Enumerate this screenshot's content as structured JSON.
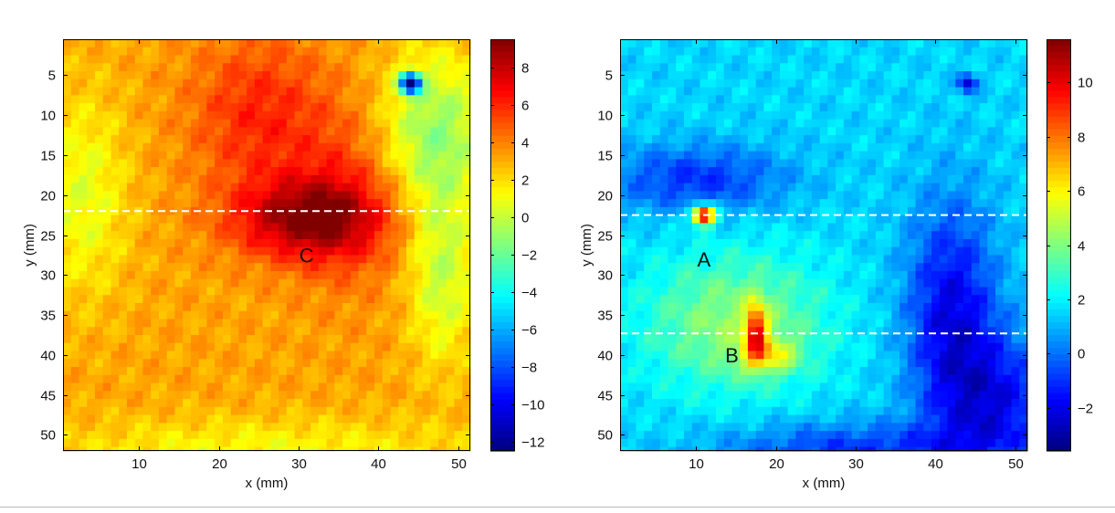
{
  "chart_data": [
    {
      "type": "heatmap",
      "id": "left",
      "xlabel": "x (mm)",
      "ylabel": "y (mm)",
      "xlim": [
        0.5,
        51.5
      ],
      "ylim": [
        0.5,
        52
      ],
      "y_reversed": true,
      "xticks": [
        10,
        20,
        30,
        40,
        50
      ],
      "yticks": [
        5,
        10,
        15,
        20,
        25,
        30,
        35,
        40,
        45,
        50
      ],
      "colormap": "jet",
      "clim": [
        -12.5,
        9.5
      ],
      "colorbar_ticks": [
        8,
        6,
        4,
        2,
        0,
        -2,
        -4,
        -6,
        -8,
        -10,
        -12
      ],
      "colorbar_tick_labels": [
        "8",
        "6",
        "4",
        "2",
        "0",
        "−2",
        "−4",
        "−6",
        "−8",
        "−10",
        "−12"
      ],
      "dashed_lines_y": [
        22
      ],
      "annotations": [
        {
          "text": "C",
          "x": 31,
          "y": 27.5
        }
      ],
      "field_features": {
        "base": 3.2,
        "hot_core": {
          "x": 31,
          "y": 23,
          "peak": 9
        },
        "cold_spot": {
          "x": 44,
          "y": 6,
          "value": -12
        },
        "cool_region_right": {
          "x": 47,
          "y": 12,
          "value": -1
        }
      }
    },
    {
      "type": "heatmap",
      "id": "right",
      "xlabel": "x (mm)",
      "ylabel": "y (mm)",
      "xlim": [
        0.5,
        51.5
      ],
      "ylim": [
        0.5,
        52
      ],
      "y_reversed": true,
      "xticks": [
        10,
        20,
        30,
        40,
        50
      ],
      "yticks": [
        5,
        10,
        15,
        20,
        25,
        30,
        35,
        40,
        45,
        50
      ],
      "colormap": "jet",
      "clim": [
        -3.6,
        11.6
      ],
      "colorbar_ticks": [
        10,
        8,
        6,
        4,
        2,
        0,
        -2
      ],
      "colorbar_tick_labels": [
        "10",
        "8",
        "6",
        "4",
        "2",
        "0",
        "−2"
      ],
      "dashed_lines_y": [
        22.5,
        37.3
      ],
      "annotations": [
        {
          "text": "A",
          "x": 11,
          "y": 28
        },
        {
          "text": "B",
          "x": 14.5,
          "y": 40
        }
      ],
      "field_features": {
        "base": 1.5,
        "hot_spot_A": {
          "x": 11,
          "y": 22.5,
          "peak": 11
        },
        "hot_spot_B": {
          "x": 17.5,
          "y": 37,
          "peak": 9
        },
        "warm_region": {
          "x": 15,
          "y": 36,
          "value": 4.5
        },
        "cold_spot": {
          "x": 44,
          "y": 6,
          "value": -2.5
        }
      }
    }
  ]
}
